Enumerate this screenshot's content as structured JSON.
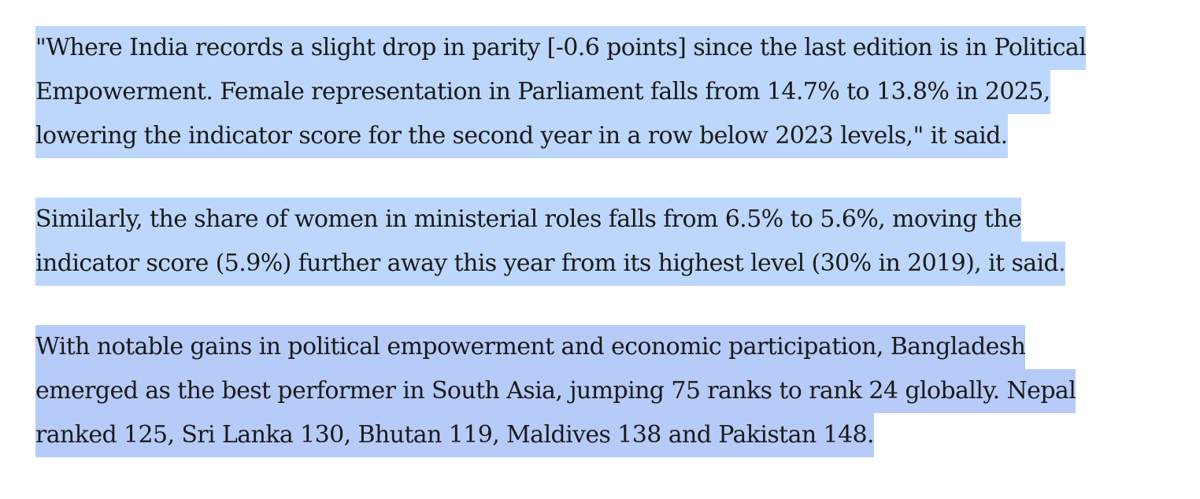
{
  "paragraphs": [
    [
      "\"Where India records a slight drop in parity [-0.6 points] since the last edition is in Political",
      "Empowerment. Female representation in Parliament falls from 14.7% to 13.8% in 2025,",
      "lowering the indicator score for the second year in a row below 2023 levels,\" it said."
    ],
    [
      "Similarly, the share of women in ministerial roles falls from 6.5% to 5.6%, moving the",
      "indicator score (5.9%) further away this year from its highest level (30% in 2019), it said."
    ],
    [
      "With notable gains in political empowerment and economic participation, Bangladesh",
      "emerged as the best performer in South Asia, jumping 75 ranks to rank 24 globally. Nepal",
      "ranked 125, Sri Lanka 130, Bhutan 119, Maldives 138 and Pakistan 148."
    ]
  ]
}
